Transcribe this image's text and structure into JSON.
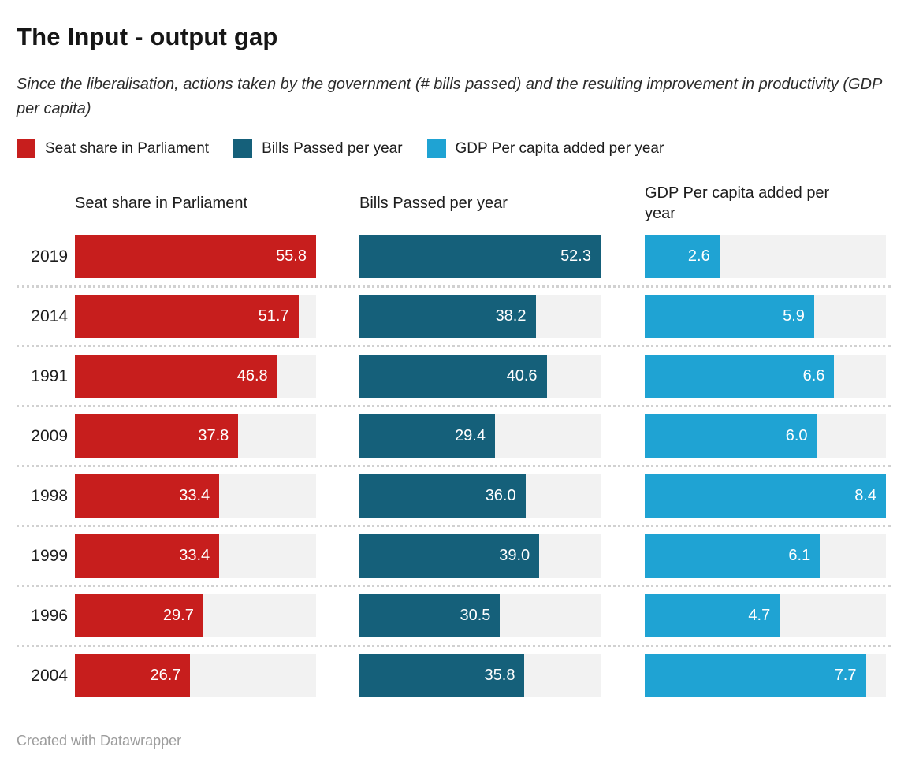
{
  "header": {
    "title": "The Input - output gap",
    "subtitle": "Since the liberalisation, actions taken by the government (# bills passed) and the resulting improvement in productivity (GDP per capita)"
  },
  "legend": [
    {
      "label": "Seat share in Parliament",
      "color": "#c71e1d"
    },
    {
      "label": "Bills Passed per year",
      "color": "#15607a"
    },
    {
      "label": "GDP Per capita added per year",
      "color": "#1fa3d3"
    }
  ],
  "chart_data": {
    "type": "bar",
    "orientation": "horizontal",
    "title": "The Input - output gap",
    "subtitle": "Since the liberalisation, actions taken by the government (# bills passed) and the resulting improvement in productivity (GDP per capita)",
    "categories": [
      "2019",
      "2014",
      "1991",
      "2009",
      "1998",
      "1999",
      "1996",
      "2004"
    ],
    "series": [
      {
        "name": "Seat share in Parliament",
        "color": "#c71e1d",
        "axis_max": 55.8,
        "values": [
          55.8,
          51.7,
          46.8,
          37.8,
          33.4,
          33.4,
          29.7,
          26.7
        ]
      },
      {
        "name": "Bills Passed per year",
        "color": "#15607a",
        "axis_max": 52.3,
        "values": [
          52.3,
          38.2,
          40.6,
          29.4,
          36.0,
          39.0,
          30.5,
          35.8
        ]
      },
      {
        "name": "GDP Per capita added per year",
        "color": "#1fa3d3",
        "axis_max": 8.4,
        "values": [
          2.6,
          5.9,
          6.6,
          6.0,
          8.4,
          6.1,
          4.7,
          7.7
        ]
      }
    ],
    "value_labels": "inside-end, white, one decimal",
    "track_color": "#f2f2f2",
    "row_separators": "dotted",
    "legend_position": "top-left"
  },
  "footer": {
    "credit": "Created with Datawrapper"
  }
}
